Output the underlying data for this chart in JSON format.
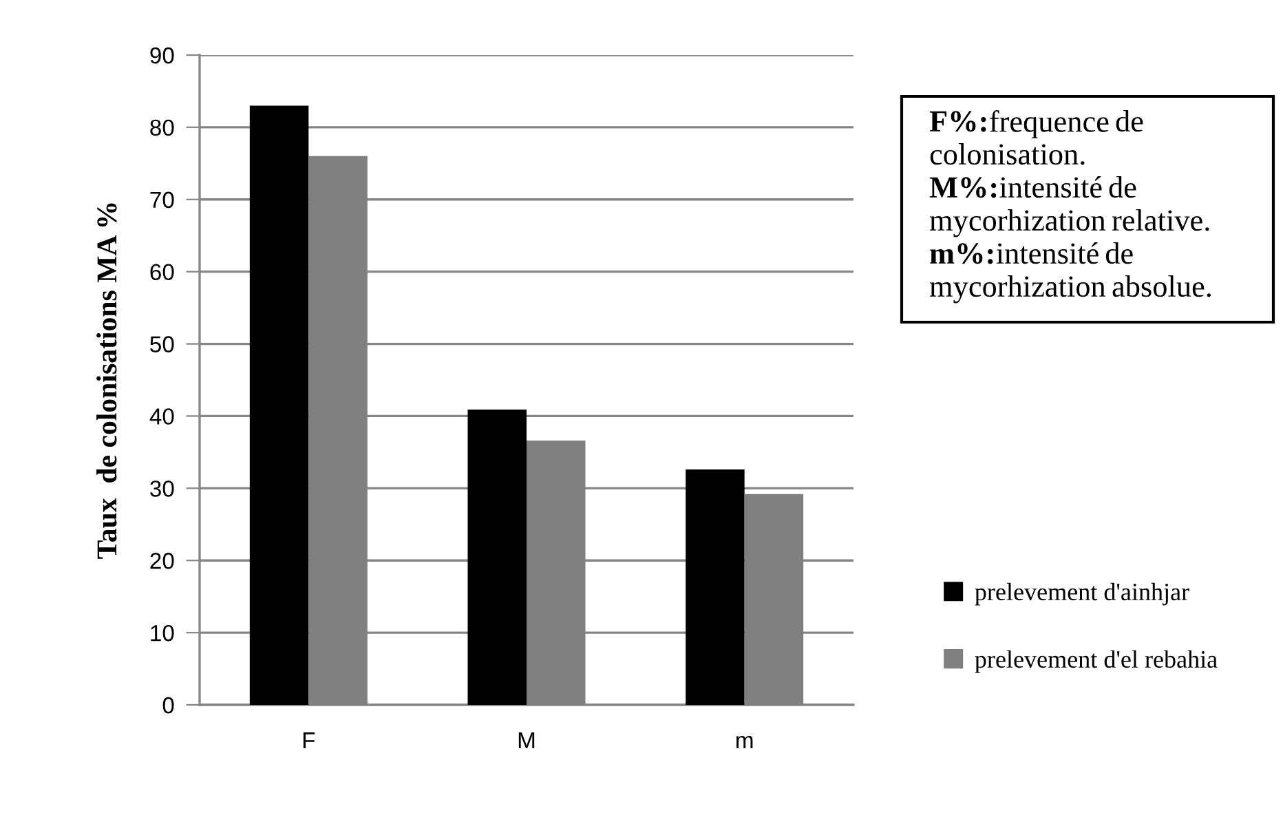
{
  "chart_data": {
    "type": "bar",
    "ylabel": "Taux  de colonisations MA %",
    "categories": [
      "F",
      "M",
      "m"
    ],
    "series": [
      {
        "name": "prelevement d'ainhjar",
        "color": "#000000",
        "values": [
          83.0,
          40.9,
          32.6
        ]
      },
      {
        "name": "prelevement d'el rebahia",
        "color": "#808080",
        "values": [
          76.0,
          36.6,
          29.2
        ]
      }
    ],
    "ylim": [
      0,
      90
    ],
    "yticks": [
      0,
      10,
      20,
      30,
      40,
      50,
      60,
      70,
      80,
      90
    ],
    "grid": "y",
    "legend": "right",
    "annotations": [
      "F%:frequence de colonisation.",
      "M%:intensité de mycorhization relative.",
      "m%:intensité de mycorhization absolue."
    ]
  }
}
